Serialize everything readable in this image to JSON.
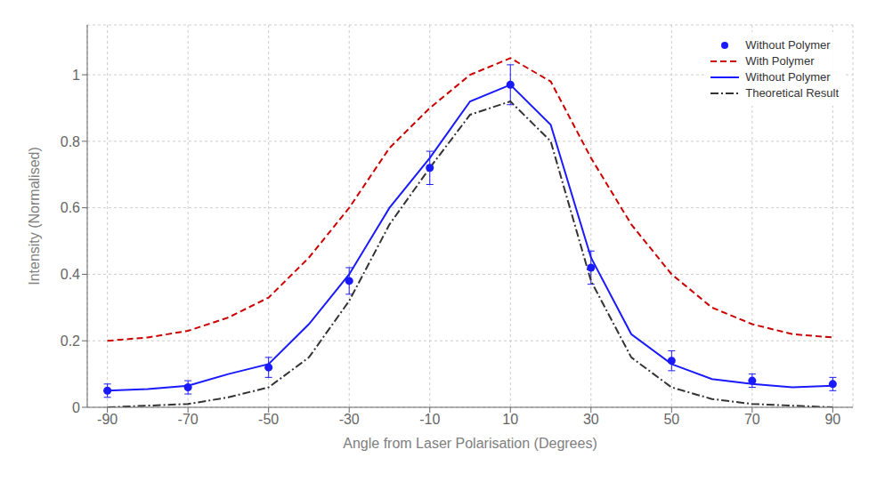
{
  "chart_data": {
    "type": "line",
    "x_label": "Angle from Laser Polarisation (Degrees)",
    "y_label": "Intensity (Normalised)",
    "xlim": [
      -95,
      95
    ],
    "xticks": [
      -90,
      -70,
      -50,
      -30,
      -10,
      10,
      30,
      50,
      70,
      90
    ],
    "ylim": [
      0,
      1.15
    ],
    "yticks": [
      0,
      0.2,
      0.4,
      0.6,
      0.8,
      1.0
    ],
    "legend": "upper right",
    "series": [
      {
        "name": "Without Polymer",
        "type": "scatter",
        "marker": "circle",
        "line_style": "none",
        "color": "#1a1aff",
        "x": [
          -90,
          -70,
          -50,
          -30,
          -10,
          10,
          30,
          50,
          70,
          90
        ],
        "values": [
          0.05,
          0.06,
          0.12,
          0.38,
          0.72,
          0.97,
          0.42,
          0.14,
          0.08,
          0.07
        ],
        "error_bars": [
          0.02,
          0.02,
          0.03,
          0.04,
          0.05,
          0.06,
          0.05,
          0.03,
          0.02,
          0.02
        ]
      },
      {
        "name": "With Polymer",
        "type": "line",
        "line_style": "dashed",
        "color": "#cc0000",
        "x": [
          -90,
          -80,
          -70,
          -60,
          -50,
          -40,
          -30,
          -20,
          -10,
          0,
          10,
          20,
          30,
          40,
          50,
          60,
          70,
          80,
          90
        ],
        "values": [
          0.2,
          0.21,
          0.23,
          0.27,
          0.33,
          0.45,
          0.6,
          0.78,
          0.9,
          1.0,
          1.05,
          0.98,
          0.75,
          0.55,
          0.4,
          0.3,
          0.25,
          0.22,
          0.21
        ]
      },
      {
        "name": "Without Polymer",
        "type": "line",
        "line_style": "solid",
        "color": "#1a1aff",
        "x": [
          -90,
          -80,
          -70,
          -60,
          -50,
          -40,
          -30,
          -20,
          -10,
          0,
          10,
          20,
          30,
          40,
          50,
          60,
          70,
          80,
          90
        ],
        "values": [
          0.05,
          0.055,
          0.065,
          0.1,
          0.13,
          0.25,
          0.4,
          0.6,
          0.75,
          0.92,
          0.97,
          0.85,
          0.45,
          0.22,
          0.13,
          0.085,
          0.07,
          0.06,
          0.065
        ]
      },
      {
        "name": "Theoretical Result",
        "type": "line",
        "line_style": "dashdot",
        "color": "#333333",
        "x": [
          -90,
          -80,
          -70,
          -60,
          -50,
          -40,
          -30,
          -20,
          -10,
          0,
          10,
          20,
          30,
          40,
          50,
          60,
          70,
          80,
          90
        ],
        "values": [
          0.0,
          0.005,
          0.01,
          0.03,
          0.06,
          0.15,
          0.32,
          0.55,
          0.72,
          0.88,
          0.92,
          0.8,
          0.38,
          0.15,
          0.06,
          0.025,
          0.01,
          0.005,
          0.0
        ]
      }
    ]
  }
}
